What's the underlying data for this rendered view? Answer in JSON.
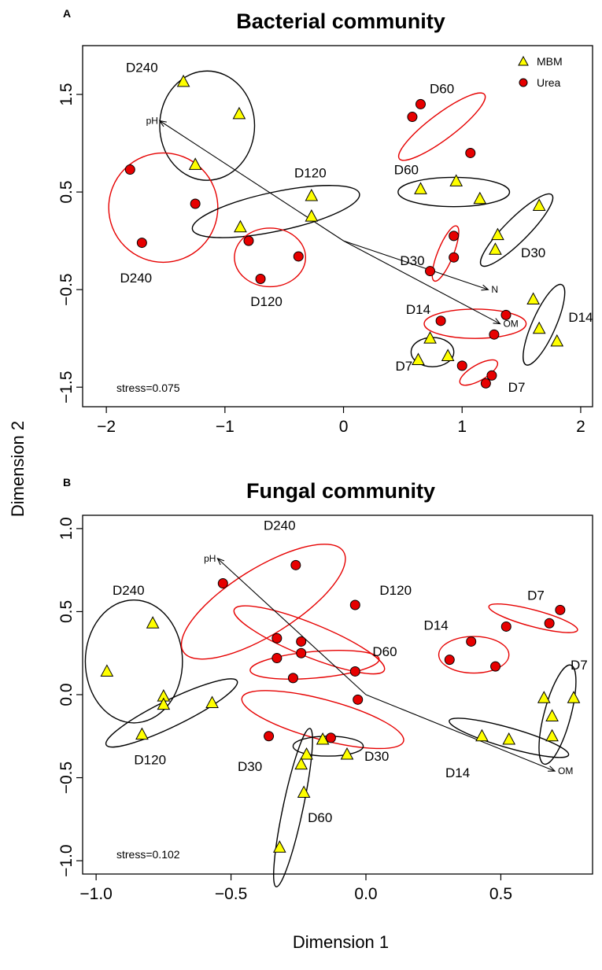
{
  "figure": {
    "xlabel": "Dimension 1",
    "ylabel": "Dimension 2",
    "legend": {
      "position": "top-right",
      "entries": [
        {
          "label": "MBM",
          "marker": "triangle",
          "color": "#ffff00"
        },
        {
          "label": "Urea",
          "marker": "circle",
          "color": "#e60000"
        }
      ]
    },
    "colors": {
      "mbm_fill": "#ffff00",
      "urea_fill": "#e60000",
      "mbm_ellipse": "#000000",
      "urea_ellipse": "#e60000"
    }
  },
  "chart_data": [
    {
      "type": "scatter",
      "panel": "A",
      "title": "Bacterial community",
      "xlim": [
        -2.2,
        2.1
      ],
      "ylim": [
        -1.7,
        2.0
      ],
      "xticks": [
        -2,
        -1,
        0,
        1,
        2
      ],
      "yticks": [
        -1.5,
        -0.5,
        0.5,
        1.5
      ],
      "xtick_labels": [
        "−2",
        "−1",
        "0",
        "1",
        "2"
      ],
      "ytick_labels": [
        "−1.5",
        "−0.5",
        "0.5",
        "1.5"
      ],
      "stress": "stress=0.075",
      "series": [
        {
          "name": "MBM",
          "marker": "triangle",
          "points": [
            [
              -1.35,
              1.63
            ],
            [
              -0.88,
              1.3
            ],
            [
              -1.25,
              0.78
            ],
            [
              -0.27,
              0.46
            ],
            [
              -0.27,
              0.25
            ],
            [
              -0.87,
              0.14
            ],
            [
              0.65,
              0.53
            ],
            [
              0.95,
              0.61
            ],
            [
              1.15,
              0.43
            ],
            [
              1.65,
              0.36
            ],
            [
              1.3,
              0.06
            ],
            [
              1.28,
              -0.09
            ],
            [
              1.6,
              -0.6
            ],
            [
              1.65,
              -0.9
            ],
            [
              1.8,
              -1.03
            ],
            [
              0.73,
              -1.0
            ],
            [
              0.63,
              -1.22
            ],
            [
              0.88,
              -1.18
            ]
          ]
        },
        {
          "name": "Urea",
          "marker": "circle",
          "points": [
            [
              -1.8,
              0.73
            ],
            [
              -1.25,
              0.38
            ],
            [
              -1.7,
              -0.02
            ],
            [
              -0.8,
              0.0
            ],
            [
              -0.38,
              -0.16
            ],
            [
              -0.7,
              -0.39
            ],
            [
              0.65,
              1.4
            ],
            [
              0.58,
              1.27
            ],
            [
              1.07,
              0.9
            ],
            [
              0.93,
              0.05
            ],
            [
              0.93,
              -0.17
            ],
            [
              0.73,
              -0.31
            ],
            [
              0.82,
              -0.82
            ],
            [
              1.37,
              -0.76
            ],
            [
              1.27,
              -0.96
            ],
            [
              1.0,
              -1.28
            ],
            [
              1.25,
              -1.38
            ],
            [
              1.2,
              -1.46
            ]
          ]
        }
      ],
      "ellipses": [
        {
          "group": "MBM",
          "label": "D240",
          "cx": -1.15,
          "cy": 1.18,
          "rx": 0.4,
          "ry": 0.56,
          "angle": 0,
          "label_xy": [
            -1.7,
            1.78
          ]
        },
        {
          "group": "Urea",
          "label": "D240",
          "cx": -1.52,
          "cy": 0.34,
          "rx": 0.46,
          "ry": 0.56,
          "angle": 0,
          "label_xy": [
            -1.75,
            -0.38
          ]
        },
        {
          "group": "MBM",
          "label": "D120",
          "cx": -0.57,
          "cy": 0.3,
          "rx": 0.72,
          "ry": 0.2,
          "angle": -12,
          "label_xy": [
            -0.28,
            0.7
          ]
        },
        {
          "group": "Urea",
          "label": "D120",
          "cx": -0.62,
          "cy": -0.17,
          "rx": 0.3,
          "ry": 0.3,
          "angle": 0,
          "label_xy": [
            -0.65,
            -0.62
          ]
        },
        {
          "group": "Urea",
          "label": "D60",
          "cx": 0.83,
          "cy": 1.17,
          "rx": 0.45,
          "ry": 0.13,
          "angle": -37,
          "label_xy": [
            0.83,
            1.56
          ]
        },
        {
          "group": "MBM",
          "label": "D60",
          "cx": 0.93,
          "cy": 0.5,
          "rx": 0.47,
          "ry": 0.15,
          "angle": 0,
          "label_xy": [
            0.53,
            0.73
          ]
        },
        {
          "group": "Urea",
          "label": "D30",
          "cx": 0.86,
          "cy": -0.13,
          "rx": 0.25,
          "ry": 0.08,
          "angle": -68,
          "label_xy": [
            0.58,
            -0.2
          ]
        },
        {
          "group": "MBM",
          "label": "D30",
          "cx": 1.46,
          "cy": 0.11,
          "rx": 0.42,
          "ry": 0.12,
          "angle": -45,
          "label_xy": [
            1.6,
            -0.12
          ]
        },
        {
          "group": "Urea",
          "label": "D14",
          "cx": 1.11,
          "cy": -0.85,
          "rx": 0.43,
          "ry": 0.15,
          "angle": 0,
          "label_xy": [
            0.63,
            -0.7
          ]
        },
        {
          "group": "MBM",
          "label": "D14",
          "cx": 1.69,
          "cy": -0.86,
          "rx": 0.37,
          "ry": 0.12,
          "angle": -66,
          "label_xy": [
            2.0,
            -0.78
          ]
        },
        {
          "group": "MBM",
          "label": "D7",
          "cx": 0.75,
          "cy": -1.14,
          "rx": 0.18,
          "ry": 0.15,
          "angle": 0,
          "label_xy": [
            0.51,
            -1.28
          ]
        },
        {
          "group": "Urea",
          "label": "D7",
          "cx": 1.14,
          "cy": -1.35,
          "rx": 0.18,
          "ry": 0.08,
          "angle": -30,
          "label_xy": [
            1.46,
            -1.5
          ]
        }
      ],
      "vectors": [
        {
          "label": "pH",
          "to": [
            -1.55,
            1.23
          ]
        },
        {
          "label": "N",
          "to": [
            1.22,
            -0.5
          ]
        },
        {
          "label": "OM",
          "to": [
            1.32,
            -0.85
          ]
        }
      ]
    },
    {
      "type": "scatter",
      "panel": "B",
      "title": "Fungal community",
      "xlim": [
        -1.05,
        0.84
      ],
      "ylim": [
        -1.08,
        1.08
      ],
      "xticks": [
        -1.0,
        -0.5,
        0.0,
        0.5
      ],
      "yticks": [
        -1.0,
        -0.5,
        0.0,
        0.5,
        1.0
      ],
      "xtick_labels": [
        "−1.0",
        "−0.5",
        "0.0",
        "0.5"
      ],
      "ytick_labels": [
        "−1.0",
        "−0.5",
        "0.0",
        "0.5",
        "1.0"
      ],
      "stress": "stress=0.102",
      "series": [
        {
          "name": "MBM",
          "marker": "triangle",
          "points": [
            [
              -0.79,
              0.43
            ],
            [
              -0.96,
              0.14
            ],
            [
              -0.75,
              -0.01
            ],
            [
              -0.75,
              -0.06
            ],
            [
              -0.57,
              -0.05
            ],
            [
              -0.83,
              -0.24
            ],
            [
              -0.16,
              -0.27
            ],
            [
              -0.22,
              -0.36
            ],
            [
              -0.07,
              -0.36
            ],
            [
              -0.24,
              -0.42
            ],
            [
              -0.23,
              -0.59
            ],
            [
              -0.32,
              -0.92
            ],
            [
              0.43,
              -0.25
            ],
            [
              0.53,
              -0.27
            ],
            [
              0.66,
              -0.02
            ],
            [
              0.77,
              -0.02
            ],
            [
              0.69,
              -0.13
            ],
            [
              0.69,
              -0.25
            ]
          ]
        },
        {
          "name": "Urea",
          "marker": "circle",
          "points": [
            [
              -0.53,
              0.67
            ],
            [
              -0.26,
              0.78
            ],
            [
              -0.04,
              0.54
            ],
            [
              -0.33,
              0.34
            ],
            [
              -0.33,
              0.22
            ],
            [
              -0.24,
              0.32
            ],
            [
              -0.24,
              0.25
            ],
            [
              -0.27,
              0.1
            ],
            [
              -0.04,
              0.14
            ],
            [
              -0.03,
              -0.03
            ],
            [
              -0.36,
              -0.25
            ],
            [
              -0.13,
              -0.26
            ],
            [
              0.39,
              0.32
            ],
            [
              0.31,
              0.21
            ],
            [
              0.48,
              0.17
            ],
            [
              0.52,
              0.41
            ],
            [
              0.68,
              0.43
            ],
            [
              0.72,
              0.51
            ]
          ]
        }
      ],
      "ellipses": [
        {
          "group": "MBM",
          "label": "D240",
          "cx": -0.86,
          "cy": 0.2,
          "rx": 0.18,
          "ry": 0.37,
          "angle": 0,
          "label_xy": [
            -0.88,
            0.63
          ]
        },
        {
          "group": "MBM",
          "label": "D120",
          "cx": -0.72,
          "cy": -0.11,
          "rx": 0.27,
          "ry": 0.08,
          "angle": -26,
          "label_xy": [
            -0.8,
            -0.39
          ]
        },
        {
          "group": "Urea",
          "label": "D240",
          "cx": -0.38,
          "cy": 0.56,
          "rx": 0.35,
          "ry": 0.2,
          "angle": -32,
          "label_xy": [
            -0.32,
            1.02
          ]
        },
        {
          "group": "Urea",
          "label": "D120",
          "cx": -0.21,
          "cy": 0.33,
          "rx": 0.3,
          "ry": 0.1,
          "angle": 22,
          "label_xy": [
            0.11,
            0.63
          ]
        },
        {
          "group": "Urea",
          "label": "D60",
          "cx": -0.19,
          "cy": 0.18,
          "rx": 0.24,
          "ry": 0.08,
          "angle": -5,
          "label_xy": [
            0.07,
            0.26
          ]
        },
        {
          "group": "Urea",
          "label": "D30",
          "cx": -0.16,
          "cy": -0.15,
          "rx": 0.31,
          "ry": 0.12,
          "angle": 15,
          "label_xy": [
            -0.43,
            -0.43
          ]
        },
        {
          "group": "MBM",
          "label": "D30",
          "cx": -0.14,
          "cy": -0.31,
          "rx": 0.13,
          "ry": 0.06,
          "angle": 0,
          "label_xy": [
            0.04,
            -0.37
          ]
        },
        {
          "group": "MBM",
          "label": "D60",
          "cx": -0.27,
          "cy": -0.68,
          "rx": 0.3,
          "ry": 0.06,
          "angle": -78,
          "label_xy": [
            -0.17,
            -0.74
          ]
        },
        {
          "group": "Urea",
          "label": "D14",
          "cx": 0.4,
          "cy": 0.24,
          "rx": 0.13,
          "ry": 0.11,
          "angle": 0,
          "label_xy": [
            0.26,
            0.42
          ]
        },
        {
          "group": "Urea",
          "label": "D7",
          "cx": 0.62,
          "cy": 0.46,
          "rx": 0.17,
          "ry": 0.05,
          "angle": 15,
          "label_xy": [
            0.63,
            0.6
          ]
        },
        {
          "group": "MBM",
          "label": "D14",
          "cx": 0.53,
          "cy": -0.26,
          "rx": 0.23,
          "ry": 0.06,
          "angle": 16,
          "label_xy": [
            0.34,
            -0.47
          ]
        },
        {
          "group": "MBM",
          "label": "D7",
          "cx": 0.71,
          "cy": -0.12,
          "rx": 0.19,
          "ry": 0.08,
          "angle": -75,
          "label_xy": [
            0.79,
            0.18
          ]
        }
      ],
      "vectors": [
        {
          "label": "pH",
          "to": [
            -0.55,
            0.82
          ]
        },
        {
          "label": "OM",
          "to": [
            0.7,
            -0.46
          ]
        }
      ]
    }
  ]
}
